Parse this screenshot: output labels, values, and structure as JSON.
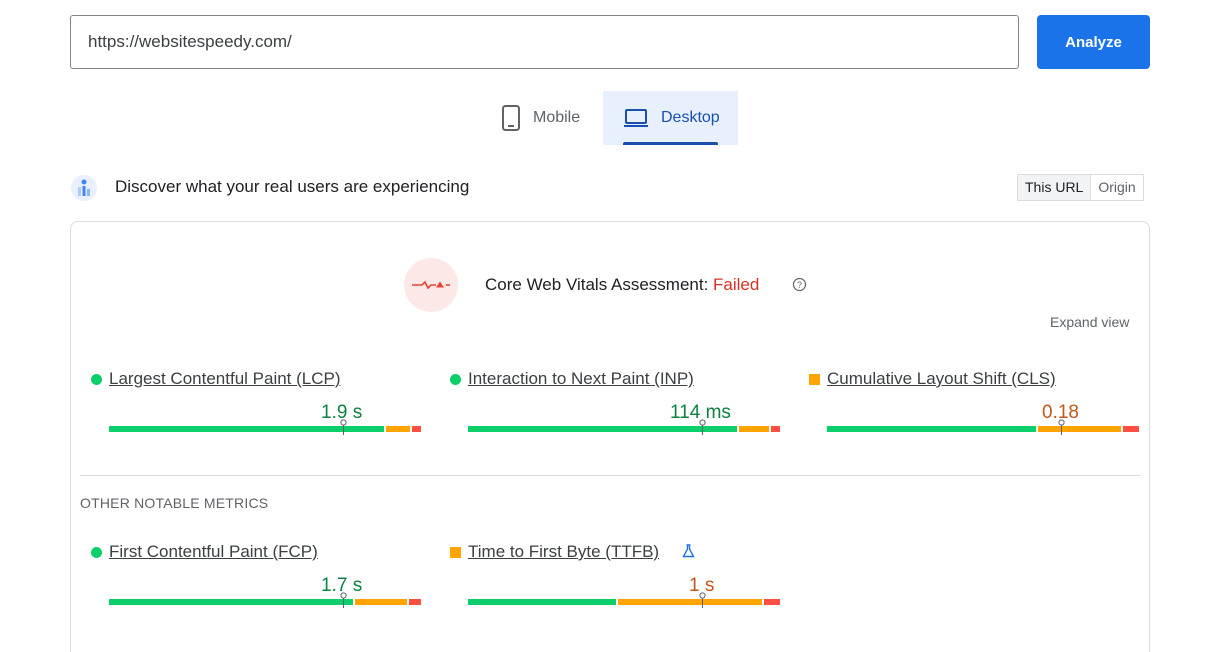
{
  "search": {
    "url_value": "https://websitespeedy.com/",
    "analyze_label": "Analyze"
  },
  "tabs": [
    {
      "label": "Mobile",
      "icon": "smartphone-icon",
      "selected": false
    },
    {
      "label": "Desktop",
      "icon": "laptop-icon",
      "selected": true
    }
  ],
  "crux": {
    "title": "Discover what your real users are experiencing",
    "icon": "users-chart-icon",
    "toggle": {
      "this_url": "This URL",
      "origin": "Origin"
    }
  },
  "assessment": {
    "label": "Core Web Vitals Assessment: ",
    "status": "Failed",
    "icon": "pulse-warning-icon",
    "help_icon": "help-icon",
    "expand_label": "Expand view"
  },
  "core_metrics": [
    {
      "name": "Largest Contentful Paint (LCP)",
      "value": "1.9 s",
      "rating": "good",
      "distribution": {
        "good": 0.88,
        "needs_improvement": 0.08,
        "poor": 0.04
      },
      "marker_position": 0.75
    },
    {
      "name": "Interaction to Next Paint (INP)",
      "value": "114 ms",
      "rating": "good",
      "distribution": {
        "good": 0.86,
        "needs_improvement": 0.11,
        "poor": 0.03
      },
      "marker_position": 0.75
    },
    {
      "name": "Cumulative Layout Shift (CLS)",
      "value": "0.18",
      "rating": "needs-improvement",
      "distribution": {
        "good": 0.67,
        "needs_improvement": 0.27,
        "poor": 0.06
      },
      "marker_position": 0.75
    }
  ],
  "other_metrics": {
    "section_title": "OTHER NOTABLE METRICS",
    "items": [
      {
        "name": "First Contentful Paint (FCP)",
        "value": "1.7 s",
        "rating": "good",
        "distribution": {
          "good": 0.79,
          "needs_improvement": 0.17,
          "poor": 0.04
        },
        "marker_position": 0.75
      },
      {
        "name": "Time to First Byte (TTFB)",
        "value": "1 s",
        "rating": "needs-improvement",
        "distribution": {
          "good": 0.47,
          "needs_improvement": 0.47,
          "poor": 0.06
        },
        "marker_position": 0.75,
        "experimental_icon": "flask-icon"
      }
    ]
  },
  "colors": {
    "accent": "#1a73e8",
    "good": "#0cce6b",
    "needs_improvement": "#ffa400",
    "poor": "#ff4e42",
    "failed": "#d93025"
  }
}
